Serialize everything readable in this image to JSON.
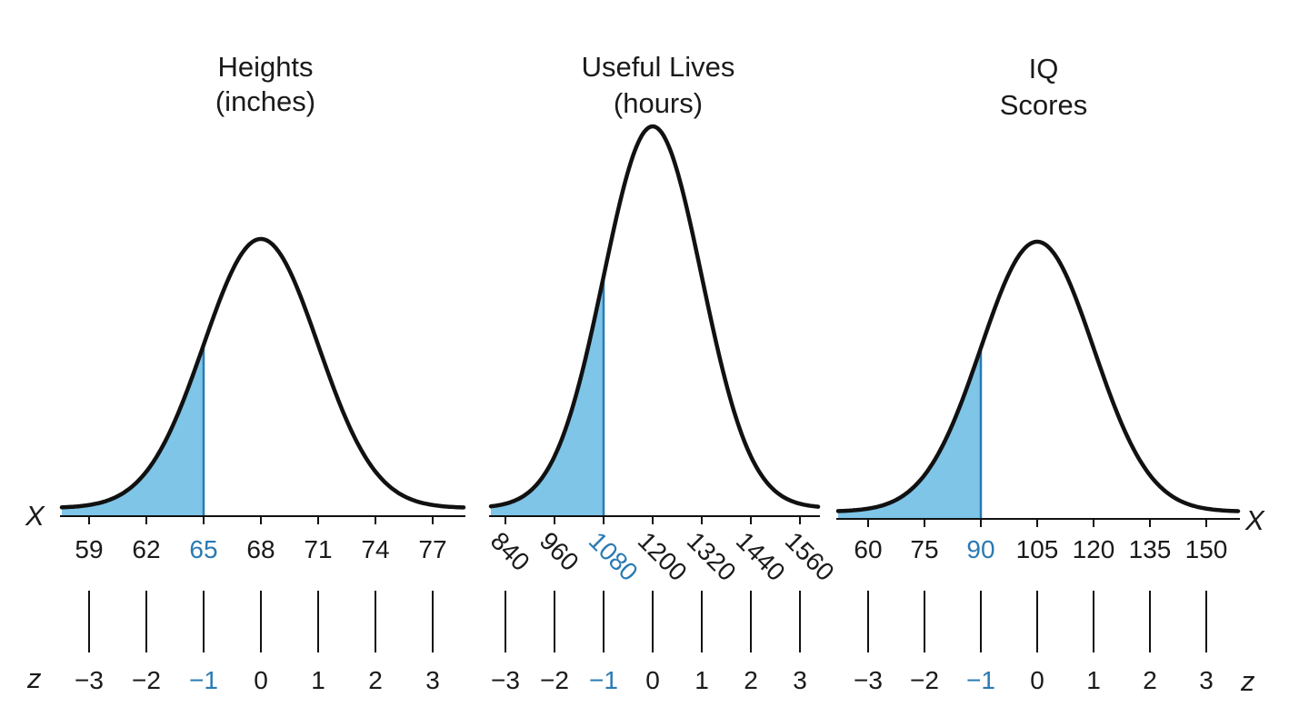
{
  "x_axis_letter": "X",
  "z_axis_letter": "z",
  "colors": {
    "curve": "#111111",
    "shade": "#7ec5e8",
    "highlight": "#2a7ab3",
    "text": "#1a1a1a"
  },
  "chart_data": [
    {
      "type": "area",
      "title_lines": [
        "Heights",
        "(inches)"
      ],
      "mean": 68,
      "sd": 3,
      "x_ticks": [
        "59",
        "62",
        "65",
        "68",
        "71",
        "74",
        "77"
      ],
      "z_ticks": [
        "−3",
        "−2",
        "−1",
        "0",
        "1",
        "2",
        "3"
      ],
      "highlight_index": 2,
      "shaded_below": 65,
      "rotated_tick_labels": false
    },
    {
      "type": "area",
      "title_lines": [
        "Useful Lives",
        "(hours)"
      ],
      "mean": 1200,
      "sd": 120,
      "x_ticks": [
        "840",
        "960",
        "1080",
        "1200",
        "1320",
        "1440",
        "1560"
      ],
      "z_ticks": [
        "−3",
        "−2",
        "−1",
        "0",
        "1",
        "2",
        "3"
      ],
      "highlight_index": 2,
      "shaded_below": 1080,
      "rotated_tick_labels": true
    },
    {
      "type": "area",
      "title_lines": [
        "IQ",
        "Scores"
      ],
      "mean": 105,
      "sd": 15,
      "x_ticks": [
        "60",
        "75",
        "90",
        "105",
        "120",
        "135",
        "150"
      ],
      "z_ticks": [
        "−3",
        "−2",
        "−1",
        "0",
        "1",
        "2",
        "3"
      ],
      "highlight_index": 2,
      "shaded_below": 90,
      "rotated_tick_labels": false
    }
  ]
}
